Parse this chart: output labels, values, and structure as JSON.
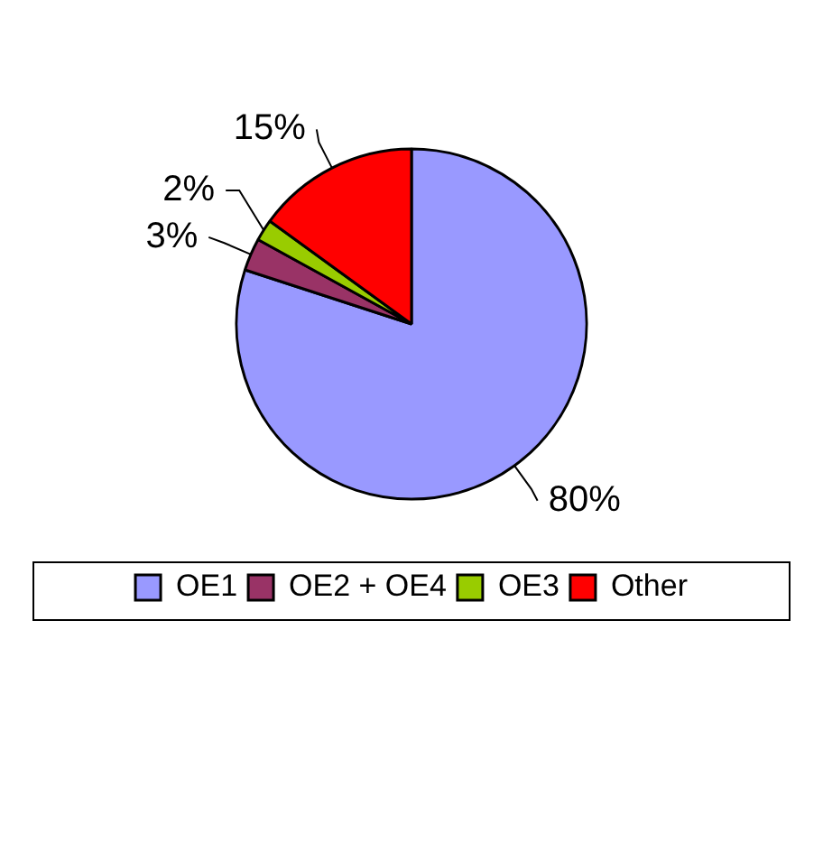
{
  "chart_data": {
    "type": "pie",
    "categories": [
      "OE1",
      "OE2 + OE4",
      "OE3",
      "Other"
    ],
    "values": [
      80,
      3,
      2,
      15
    ],
    "colors": [
      "#9999ff",
      "#993366",
      "#99cc00",
      "#ff0000"
    ],
    "value_labels": [
      "80%",
      "3%",
      "2%",
      "15%"
    ],
    "legend": "bottom"
  }
}
